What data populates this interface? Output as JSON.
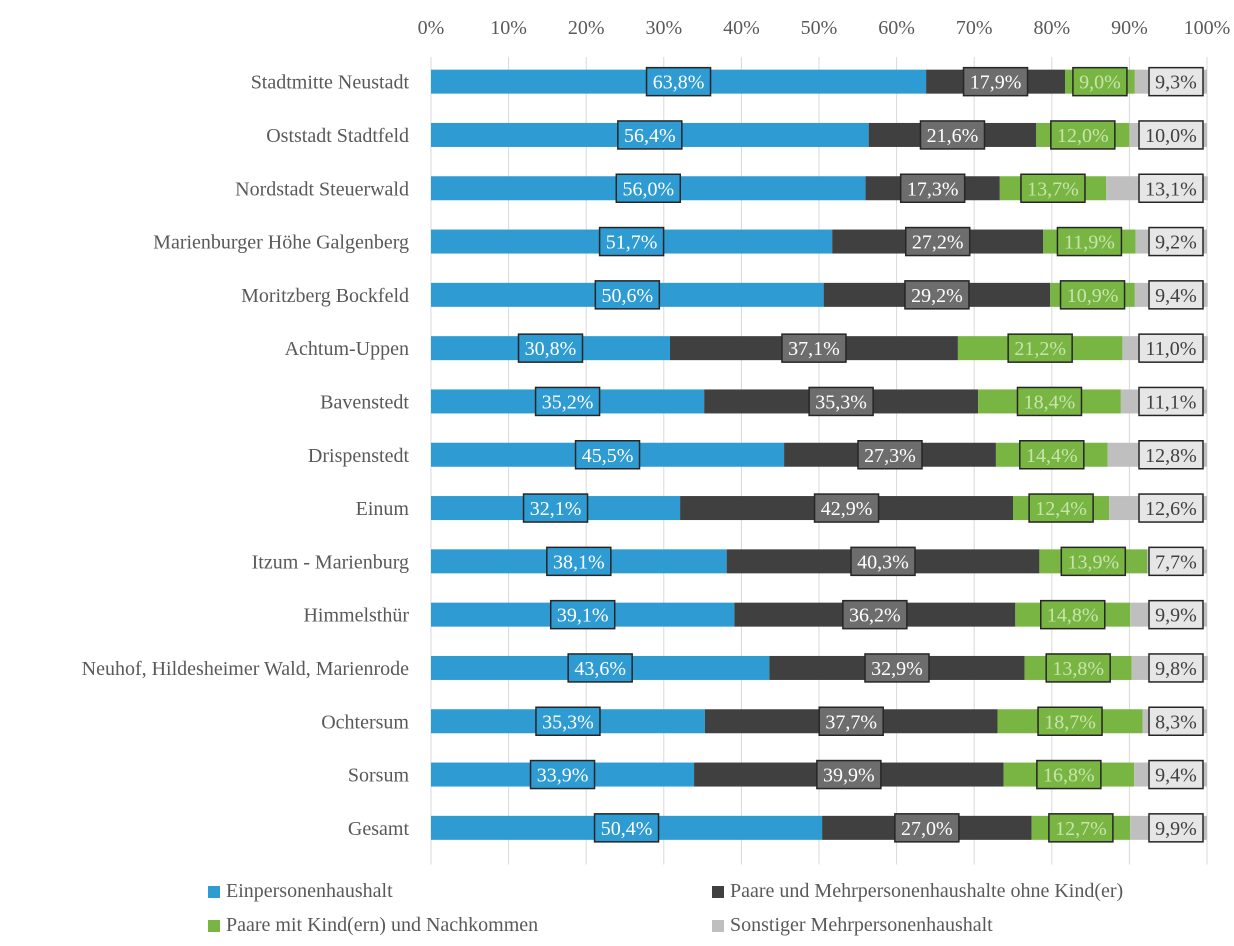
{
  "chart_data": {
    "type": "bar",
    "orientation": "horizontal",
    "stacked": true,
    "percent": true,
    "xlim": [
      0,
      100
    ],
    "x_ticks": [
      "0%",
      "10%",
      "20%",
      "30%",
      "40%",
      "50%",
      "60%",
      "70%",
      "80%",
      "90%",
      "100%"
    ],
    "x_axis_position": "top",
    "grid": true,
    "legend_position": "bottom",
    "categories": [
      "Stadtmitte Neustadt",
      "Oststadt Stadtfeld",
      "Nordstadt Steuerwald",
      "Marienburger Höhe Galgenberg",
      "Moritzberg Bockfeld",
      "Achtum-Uppen",
      "Bavenstedt",
      "Drispenstedt",
      "Einum",
      "Itzum - Marienburg",
      "Himmelsthür",
      "Neuhof, Hildesheimer Wald, Marienrode",
      "Ochtersum",
      "Sorsum",
      "Gesamt"
    ],
    "series": [
      {
        "name": "Einpersonenhaushalt",
        "color": "#2e9bd3",
        "values": [
          63.8,
          56.4,
          56.0,
          51.7,
          50.6,
          30.8,
          35.2,
          45.5,
          32.1,
          38.1,
          39.1,
          43.6,
          35.3,
          33.9,
          50.4
        ],
        "labels": [
          "63,8%",
          "56,4%",
          "56,0%",
          "51,7%",
          "50,6%",
          "30,8%",
          "35,2%",
          "45,5%",
          "32,1%",
          "38,1%",
          "39,1%",
          "43,6%",
          "35,3%",
          "33,9%",
          "50,4%"
        ],
        "label_box_fill": "#2e9bd3",
        "label_text_color": "#ffffff"
      },
      {
        "name": "Paare und Mehrpersonenhaushalte ohne Kind(er)",
        "color": "#404040",
        "values": [
          17.9,
          21.6,
          17.3,
          27.2,
          29.2,
          37.1,
          35.3,
          27.3,
          42.9,
          40.3,
          36.2,
          32.9,
          37.7,
          39.9,
          27.0
        ],
        "labels": [
          "17,9%",
          "21,6%",
          "17,3%",
          "27,2%",
          "29,2%",
          "37,1%",
          "35,3%",
          "27,3%",
          "42,9%",
          "40,3%",
          "36,2%",
          "32,9%",
          "37,7%",
          "39,9%",
          "27,0%"
        ],
        "label_box_fill": "#6d6d6d",
        "label_text_color": "#ffffff"
      },
      {
        "name": "Paare mit Kind(ern) und Nachkommen",
        "color": "#79b542",
        "values": [
          9.0,
          12.0,
          13.7,
          11.9,
          10.9,
          21.2,
          18.4,
          14.4,
          12.4,
          13.9,
          14.8,
          13.8,
          18.7,
          16.8,
          12.7
        ],
        "labels": [
          "9,0%",
          "12,0%",
          "13,7%",
          "11,9%",
          "10,9%",
          "21,2%",
          "18,4%",
          "14,4%",
          "12,4%",
          "13,9%",
          "14,8%",
          "13,8%",
          "18,7%",
          "16,8%",
          "12,7%"
        ],
        "label_box_fill": "#79b542",
        "label_text_color": "#c8e4ad"
      },
      {
        "name": "Sonstiger Mehrpersonenhaushalt",
        "color": "#bfbfbf",
        "values": [
          9.3,
          10.0,
          13.1,
          9.2,
          9.4,
          11.0,
          11.1,
          12.8,
          12.6,
          7.7,
          9.9,
          9.8,
          8.3,
          9.4,
          9.9
        ],
        "labels": [
          "9,3%",
          "10,0%",
          "13,1%",
          "9,2%",
          "9,4%",
          "11,0%",
          "11,1%",
          "12,8%",
          "12,6%",
          "7,7%",
          "9,9%",
          "9,8%",
          "8,3%",
          "9,4%",
          "9,9%"
        ],
        "label_box_fill": "#e6e6e6",
        "label_text_color": "#404040"
      }
    ]
  }
}
